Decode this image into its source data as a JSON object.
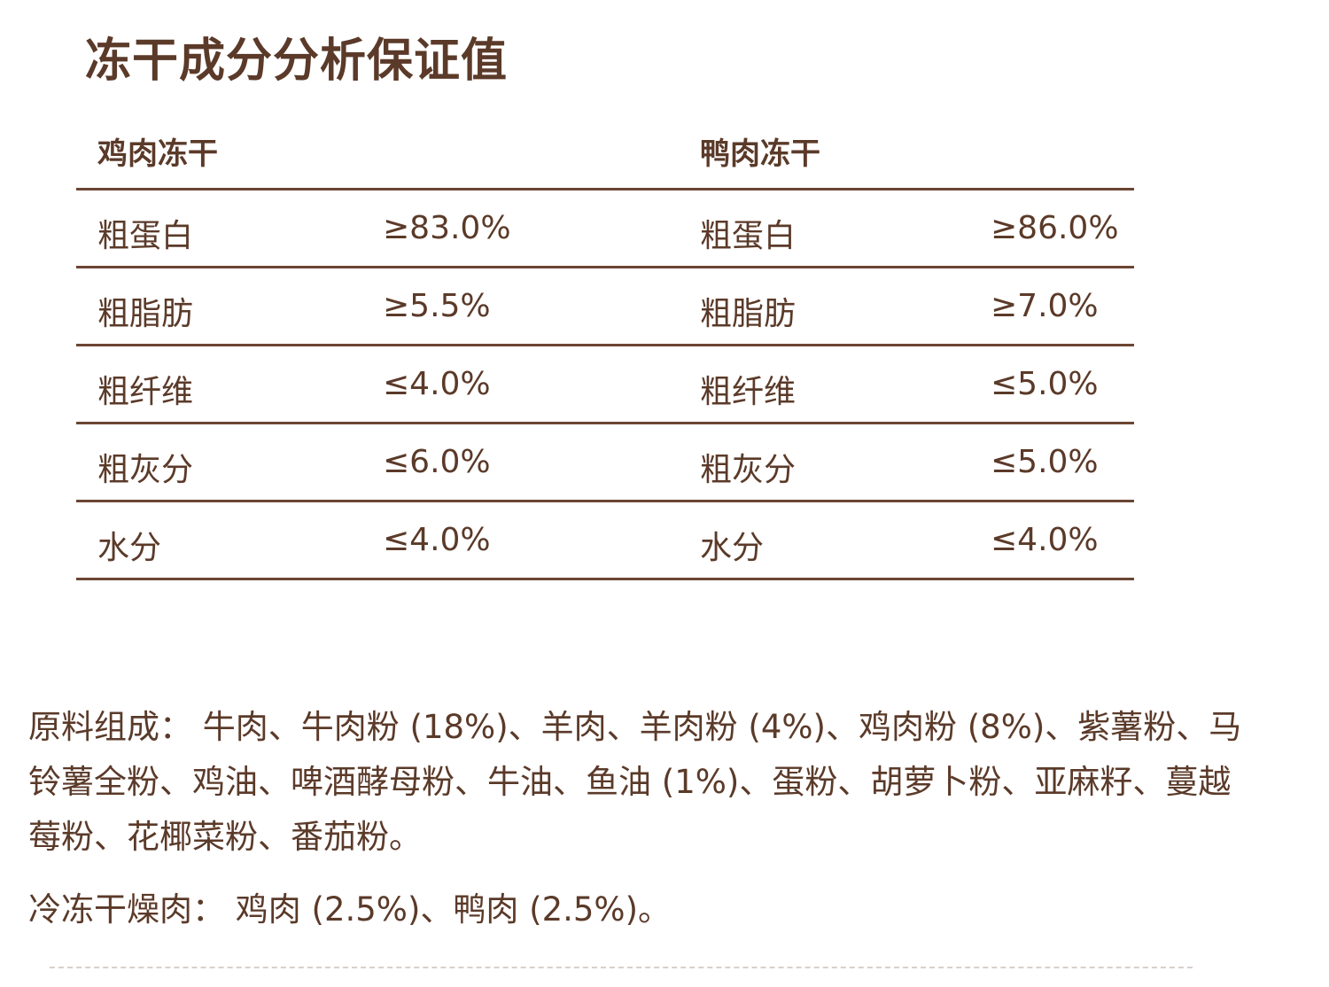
{
  "title": "冻干成分分析保证值",
  "table": {
    "left_header": "鸡肉冻干",
    "right_header": "鸭肉冻干",
    "rows": [
      {
        "left_label": "粗蛋白",
        "left_value": "≥83.0%",
        "right_label": "粗蛋白",
        "right_value": "≥86.0%"
      },
      {
        "left_label": "粗脂肪",
        "left_value": "≥5.5%",
        "right_label": "粗脂肪",
        "right_value": "≥7.0%"
      },
      {
        "left_label": "粗纤维",
        "left_value": "≤4.0%",
        "right_label": "粗纤维",
        "right_value": "≤5.0%"
      },
      {
        "left_label": "粗灰分",
        "left_value": "≤6.0%",
        "right_label": "粗灰分",
        "right_value": "≤5.0%"
      },
      {
        "left_label": "水分",
        "left_value": "≤4.0%",
        "right_label": "水分",
        "right_value": "≤4.0%"
      }
    ]
  },
  "ingredients": {
    "label": "原料组成：",
    "text": " 牛肉、牛肉粉 (18%)、羊肉、羊肉粉 (4%)、鸡肉粉 (8%)、紫薯粉、马铃薯全粉、鸡油、啤酒酵母粉、牛油、鱼油 (1%)、蛋粉、胡萝卜粉、亚麻籽、蔓越莓粉、花椰菜粉、番茄粉。"
  },
  "freeze_dried_meat": {
    "label": "冷冻干燥肉：",
    "text": " 鸡肉 (2.5%)、鸭肉 (2.5%)。"
  },
  "colors": {
    "text": "#5b3a29",
    "rule": "#6b4532",
    "dashed": "#d8d0cb"
  }
}
